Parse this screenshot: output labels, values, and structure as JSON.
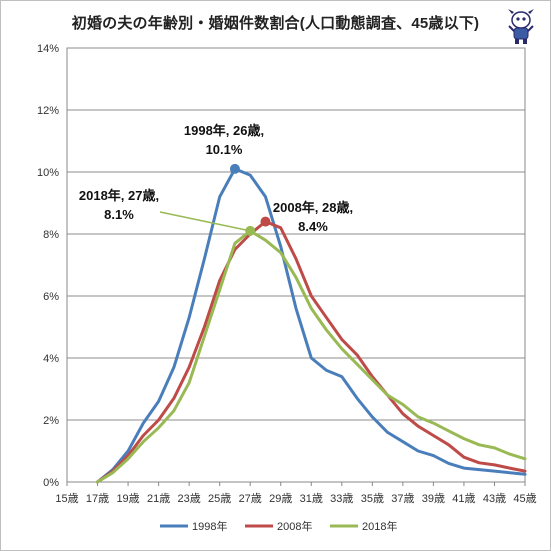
{
  "title": "初婚の夫の年齢別・婚姻件数割合(人口動態調査、45歳以下)",
  "chart_data": {
    "type": "line",
    "title": "初婚の夫の年齢別・婚姻件数割合(人口動態調査、45歳以下)",
    "xlabel": "",
    "ylabel": "",
    "x_categories": [
      "15歳",
      "16歳",
      "17歳",
      "18歳",
      "19歳",
      "20歳",
      "21歳",
      "22歳",
      "23歳",
      "24歳",
      "25歳",
      "26歳",
      "27歳",
      "28歳",
      "29歳",
      "30歳",
      "31歳",
      "32歳",
      "33歳",
      "34歳",
      "35歳",
      "36歳",
      "37歳",
      "38歳",
      "39歳",
      "40歳",
      "41歳",
      "42歳",
      "43歳",
      "44歳",
      "45歳"
    ],
    "x_tick_labels": [
      "15歳",
      "17歳",
      "19歳",
      "21歳",
      "23歳",
      "25歳",
      "27歳",
      "29歳",
      "31歳",
      "33歳",
      "35歳",
      "37歳",
      "39歳",
      "41歳",
      "43歳",
      "45歳"
    ],
    "y_tick_labels": [
      "0%",
      "2%",
      "4%",
      "6%",
      "8%",
      "10%",
      "12%",
      "14%"
    ],
    "ylim": [
      0,
      14
    ],
    "grid": true,
    "legend_position": "bottom",
    "series": [
      {
        "name": "1998年",
        "color": "#4a7ebb",
        "x": [
          "17歳",
          "18歳",
          "19歳",
          "20歳",
          "21歳",
          "22歳",
          "23歳",
          "24歳",
          "25歳",
          "26歳",
          "27歳",
          "28歳",
          "29歳",
          "30歳",
          "31歳",
          "32歳",
          "33歳",
          "34歳",
          "35歳",
          "36歳",
          "37歳",
          "38歳",
          "39歳",
          "40歳",
          "41歳",
          "42歳",
          "43歳",
          "44歳",
          "45歳"
        ],
        "values": [
          0.0,
          0.4,
          1.0,
          1.9,
          2.6,
          3.7,
          5.3,
          7.2,
          9.2,
          10.1,
          9.9,
          9.2,
          7.6,
          5.6,
          4.0,
          3.6,
          3.4,
          2.7,
          2.1,
          1.6,
          1.3,
          1.0,
          0.85,
          0.6,
          0.45,
          0.4,
          0.35,
          0.3,
          0.25
        ]
      },
      {
        "name": "2008年",
        "color": "#be4b48",
        "x": [
          "17歳",
          "18歳",
          "19歳",
          "20歳",
          "21歳",
          "22歳",
          "23歳",
          "24歳",
          "25歳",
          "26歳",
          "27歳",
          "28歳",
          "29歳",
          "30歳",
          "31歳",
          "32歳",
          "33歳",
          "34歳",
          "35歳",
          "36歳",
          "37歳",
          "38歳",
          "39歳",
          "40歳",
          "41歳",
          "42歳",
          "43歳",
          "44歳",
          "45歳"
        ],
        "values": [
          0.0,
          0.35,
          0.85,
          1.5,
          2.0,
          2.7,
          3.7,
          5.0,
          6.5,
          7.5,
          8.0,
          8.4,
          8.2,
          7.2,
          6.0,
          5.3,
          4.6,
          4.1,
          3.4,
          2.8,
          2.2,
          1.8,
          1.5,
          1.2,
          0.8,
          0.62,
          0.55,
          0.45,
          0.35
        ]
      },
      {
        "name": "2018年",
        "color": "#98b954",
        "x": [
          "17歳",
          "18歳",
          "19歳",
          "20歳",
          "21歳",
          "22歳",
          "23歳",
          "24歳",
          "25歳",
          "26歳",
          "27歳",
          "28歳",
          "29歳",
          "30歳",
          "31歳",
          "32歳",
          "33歳",
          "34歳",
          "35歳",
          "36歳",
          "37歳",
          "38歳",
          "39歳",
          "40歳",
          "41歳",
          "42歳",
          "43歳",
          "44歳",
          "45歳"
        ],
        "values": [
          0.0,
          0.3,
          0.75,
          1.3,
          1.75,
          2.3,
          3.2,
          4.7,
          6.2,
          7.7,
          8.1,
          7.8,
          7.4,
          6.6,
          5.6,
          4.9,
          4.3,
          3.8,
          3.3,
          2.8,
          2.5,
          2.1,
          1.9,
          1.65,
          1.4,
          1.2,
          1.1,
          0.9,
          0.75
        ]
      }
    ],
    "annotations": [
      {
        "series": "1998年",
        "x": "26歳",
        "y": 10.1,
        "lines": [
          "1998年, 26歳,",
          "10.1%"
        ]
      },
      {
        "series": "2008年",
        "x": "28歳",
        "y": 8.4,
        "lines": [
          "2008年, 28歳,",
          "8.4%"
        ]
      },
      {
        "series": "2018年",
        "x": "27歳",
        "y": 8.1,
        "lines": [
          "2018年, 27歳,",
          "8.1%"
        ]
      }
    ]
  }
}
